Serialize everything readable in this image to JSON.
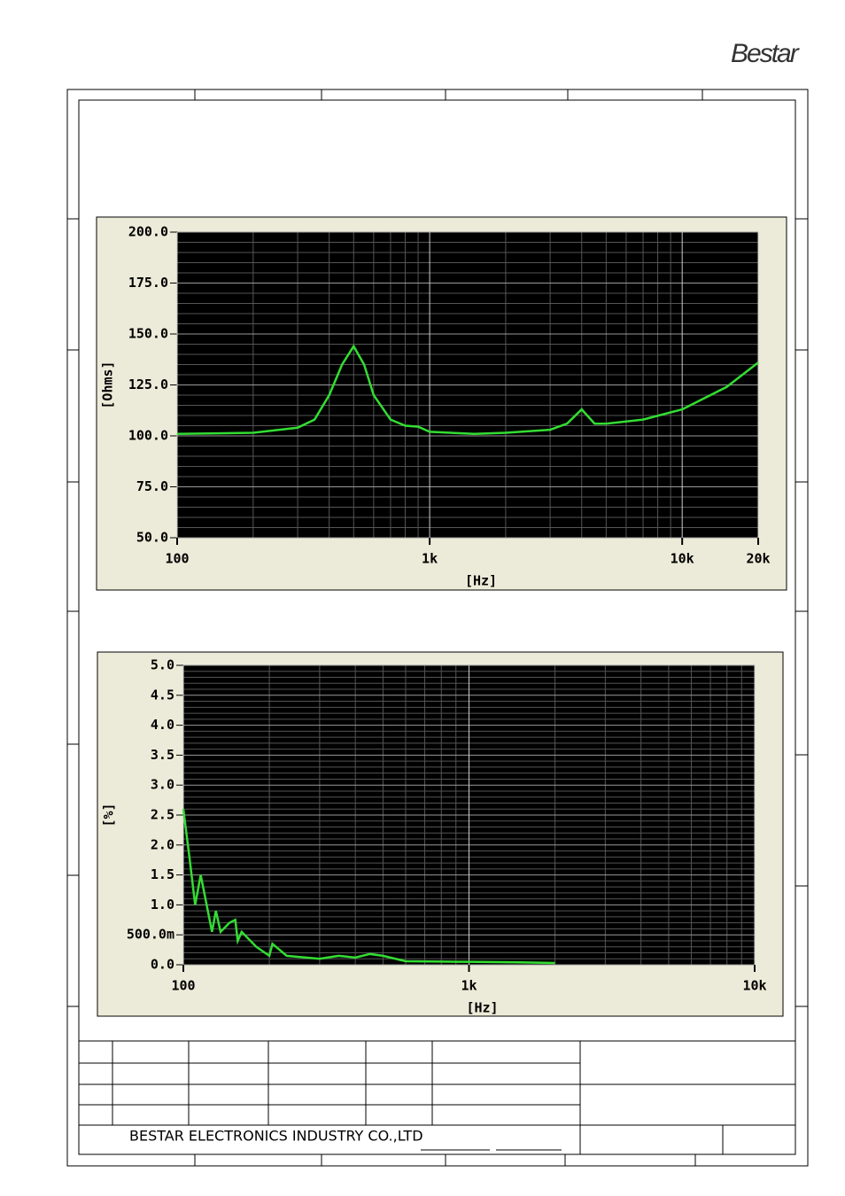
{
  "logo": "Bestar",
  "footer": {
    "company": "BESTAR ELECTRONICS INDUSTRY CO.,LTD"
  },
  "chart_data": [
    {
      "type": "line",
      "xlabel": "[Hz]",
      "ylabel": "[Ohms]",
      "log_x": true,
      "grid": true,
      "color": "#33dd33",
      "x": [
        100,
        200,
        300,
        350,
        400,
        450,
        500,
        550,
        600,
        700,
        800,
        900,
        1000,
        1500,
        2000,
        3000,
        3500,
        4000,
        4500,
        5000,
        7000,
        10000,
        15000,
        20000
      ],
      "values": [
        101,
        101.5,
        104,
        108,
        120,
        135,
        144,
        135,
        120,
        108,
        105,
        104.5,
        102,
        101,
        101.5,
        103,
        106,
        113,
        106,
        106,
        108,
        113,
        124,
        136
      ],
      "xlim": [
        100,
        20000
      ],
      "xticks": [
        100,
        {
          "value": 1000,
          "label": "1k"
        },
        {
          "value": 10000,
          "label": "10k"
        },
        {
          "value": 20000,
          "label": "20k"
        }
      ],
      "xminorticks": [
        200,
        300,
        400,
        500,
        600,
        700,
        800,
        900,
        2000,
        3000,
        4000,
        5000,
        6000,
        7000,
        8000,
        9000
      ],
      "ylim": [
        50,
        200
      ],
      "yticks": [
        {
          "value": 50,
          "label": "50.0"
        },
        {
          "value": 75,
          "label": "75.0"
        },
        {
          "value": 100,
          "label": "100.0"
        },
        {
          "value": 125,
          "label": "125.0"
        },
        {
          "value": 150,
          "label": "150.0"
        },
        {
          "value": 175,
          "label": "175.0"
        },
        {
          "value": 200,
          "label": "200.0"
        }
      ]
    },
    {
      "type": "line",
      "xlabel": "[Hz]",
      "ylabel": "[%]",
      "log_x": true,
      "grid": true,
      "color": "#33dd33",
      "x": [
        100,
        105,
        110,
        115,
        126,
        130,
        135,
        145,
        152,
        155,
        160,
        180,
        200,
        205,
        230,
        300,
        350,
        400,
        450,
        500,
        600,
        900,
        1000,
        1500,
        2000
      ],
      "values": [
        2.6,
        1.8,
        1.0,
        1.5,
        0.55,
        0.9,
        0.55,
        0.7,
        0.75,
        0.4,
        0.55,
        0.3,
        0.15,
        0.35,
        0.15,
        0.1,
        0.15,
        0.12,
        0.18,
        0.15,
        0.06,
        0.05,
        0.05,
        0.04,
        0.03
      ],
      "xlim": [
        100,
        10000
      ],
      "xticks": [
        100,
        {
          "value": 1000,
          "label": "1k"
        },
        {
          "value": 10000,
          "label": "10k"
        }
      ],
      "xminorticks": [
        200,
        300,
        400,
        500,
        600,
        700,
        800,
        900,
        2000,
        3000,
        4000,
        5000,
        6000,
        7000,
        8000,
        9000
      ],
      "ylim": [
        0,
        5
      ],
      "yticks": [
        {
          "value": 0,
          "label": "0.0"
        },
        {
          "value": 0.5,
          "label": "500.0m"
        },
        {
          "value": 1,
          "label": "1.0"
        },
        {
          "value": 1.5,
          "label": "1.5"
        },
        {
          "value": 2,
          "label": "2.0"
        },
        {
          "value": 2.5,
          "label": "2.5"
        },
        {
          "value": 3,
          "label": "3.0"
        },
        {
          "value": 3.5,
          "label": "3.5"
        },
        {
          "value": 4,
          "label": "4.0"
        },
        {
          "value": 4.5,
          "label": "4.5"
        },
        {
          "value": 5,
          "label": "5.0"
        }
      ]
    }
  ]
}
